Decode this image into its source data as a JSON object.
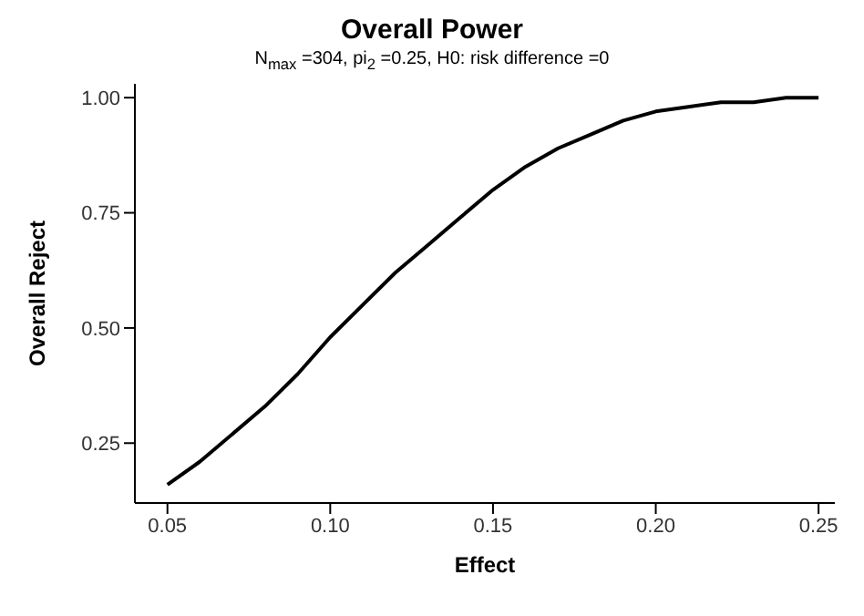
{
  "chart_data": {
    "type": "line",
    "title": "Overall Power",
    "subtitle": "N$_{max}$ =304, pi$_{2}$ =0.25, H0: risk difference =0",
    "xlabel": "Effect",
    "ylabel": "Overall Reject",
    "x": [
      0.05,
      0.06,
      0.07,
      0.08,
      0.09,
      0.1,
      0.11,
      0.12,
      0.13,
      0.14,
      0.15,
      0.16,
      0.17,
      0.18,
      0.19,
      0.2,
      0.21,
      0.22,
      0.23,
      0.24,
      0.25
    ],
    "series": [
      {
        "color": "#000000",
        "values": [
          0.16,
          0.21,
          0.27,
          0.33,
          0.4,
          0.48,
          0.55,
          0.62,
          0.68,
          0.74,
          0.8,
          0.85,
          0.89,
          0.92,
          0.95,
          0.97,
          0.98,
          0.99,
          0.99,
          1.0,
          1.0
        ]
      }
    ],
    "xlim": [
      0.04,
      0.255
    ],
    "ylim": [
      0.12,
      1.03
    ],
    "xticks": [
      {
        "value": 0.05,
        "label": "0.05"
      },
      {
        "value": 0.1,
        "label": "0.10"
      },
      {
        "value": 0.15,
        "label": "0.15"
      },
      {
        "value": 0.2,
        "label": "0.20"
      },
      {
        "value": 0.25,
        "label": "0.25"
      }
    ],
    "yticks": [
      {
        "value": 0.25,
        "label": "0.25"
      },
      {
        "value": 0.5,
        "label": "0.50"
      },
      {
        "value": 0.75,
        "label": "0.75"
      },
      {
        "value": 1,
        "label": "1.00"
      }
    ],
    "grid": false,
    "legend": false,
    "marker": "none",
    "line_style": "solid"
  }
}
